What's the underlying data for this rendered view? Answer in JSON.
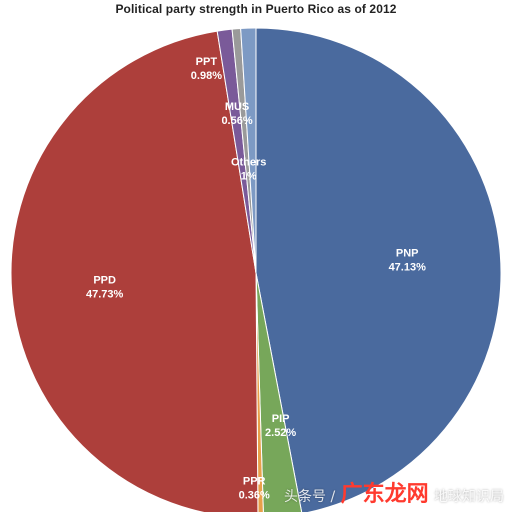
{
  "chart_data": {
    "type": "pie",
    "title": "Political party strength in Puerto Rico as of 2012",
    "slices": [
      {
        "label": "PNP",
        "value": 47.13,
        "percent_label": "47.13%",
        "color": "#4a6a9e"
      },
      {
        "label": "PIP",
        "value": 2.52,
        "percent_label": "2.52%",
        "color": "#77a75a"
      },
      {
        "label": "PPR",
        "value": 0.36,
        "percent_label": "0.36%",
        "color": "#e8a04a"
      },
      {
        "label": "PPD",
        "value": 47.73,
        "percent_label": "47.73%",
        "color": "#ad3f3b"
      },
      {
        "label": "PPT",
        "value": 0.98,
        "percent_label": "0.98%",
        "color": "#7a5a99"
      },
      {
        "label": "MUS",
        "value": 0.56,
        "percent_label": "0.56%",
        "color": "#9a9a9a"
      },
      {
        "label": "Others",
        "value": 1,
        "percent_label": "1%",
        "color": "#7d9ac4"
      }
    ]
  },
  "watermark": {
    "prefix": "头条号 /",
    "brand": "广东龙网",
    "suffix": "地球知识局"
  }
}
